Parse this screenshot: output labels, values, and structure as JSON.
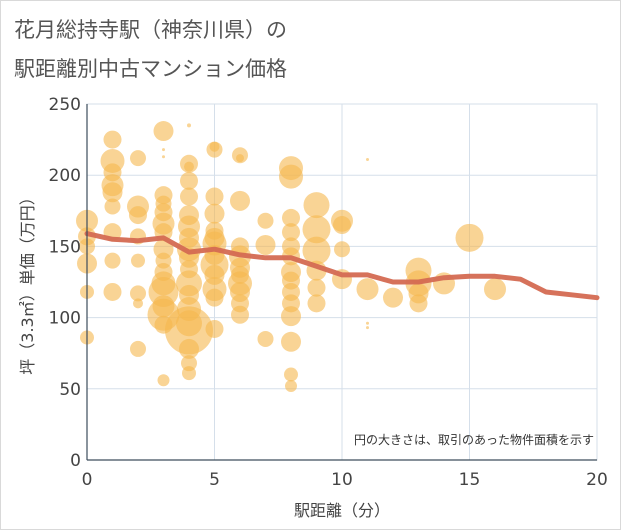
{
  "title_line1": "花月総持寺駅（神奈川県）の",
  "title_line2": "駅距離別中古マンション価格",
  "chart_data": {
    "type": "scatter",
    "title": "花月総持寺駅（神奈川県）の 駅距離別中古マンション価格",
    "xlabel": "駅距離（分）",
    "ylabel": "坪（3.3㎡）単価（万円）",
    "xlim": [
      0,
      20
    ],
    "ylim": [
      0,
      250
    ],
    "xticks": [
      0,
      5,
      10,
      15,
      20
    ],
    "yticks": [
      0,
      50,
      100,
      150,
      200,
      250
    ],
    "grid": true,
    "note": "円の大きさは、取引のあった物件面積を示す",
    "bubble_color": "#f5b84e",
    "line_color": "#d46a52",
    "bubbles": [
      {
        "x": 0,
        "y": 168,
        "r": 11
      },
      {
        "x": 0,
        "y": 157,
        "r": 9
      },
      {
        "x": 0,
        "y": 150,
        "r": 8
      },
      {
        "x": 0,
        "y": 138,
        "r": 10
      },
      {
        "x": 0,
        "y": 118,
        "r": 7
      },
      {
        "x": 0,
        "y": 86,
        "r": 7
      },
      {
        "x": 1,
        "y": 225,
        "r": 9
      },
      {
        "x": 1,
        "y": 210,
        "r": 12
      },
      {
        "x": 1,
        "y": 202,
        "r": 9
      },
      {
        "x": 1,
        "y": 193,
        "r": 11
      },
      {
        "x": 1,
        "y": 188,
        "r": 10
      },
      {
        "x": 1,
        "y": 178,
        "r": 8
      },
      {
        "x": 1,
        "y": 160,
        "r": 9
      },
      {
        "x": 1,
        "y": 140,
        "r": 8
      },
      {
        "x": 1,
        "y": 118,
        "r": 9
      },
      {
        "x": 2,
        "y": 212,
        "r": 8
      },
      {
        "x": 2,
        "y": 178,
        "r": 11
      },
      {
        "x": 2,
        "y": 172,
        "r": 9
      },
      {
        "x": 2,
        "y": 157,
        "r": 8
      },
      {
        "x": 2,
        "y": 140,
        "r": 7
      },
      {
        "x": 2,
        "y": 117,
        "r": 8
      },
      {
        "x": 2,
        "y": 110,
        "r": 5
      },
      {
        "x": 2,
        "y": 78,
        "r": 8
      },
      {
        "x": 3,
        "y": 231,
        "r": 10
      },
      {
        "x": 3,
        "y": 218,
        "r": 1.5
      },
      {
        "x": 3,
        "y": 213,
        "r": 1.5
      },
      {
        "x": 3,
        "y": 186,
        "r": 9
      },
      {
        "x": 3,
        "y": 180,
        "r": 8
      },
      {
        "x": 3,
        "y": 174,
        "r": 9
      },
      {
        "x": 3,
        "y": 166,
        "r": 11
      },
      {
        "x": 3,
        "y": 160,
        "r": 9
      },
      {
        "x": 3,
        "y": 148,
        "r": 10
      },
      {
        "x": 3,
        "y": 140,
        "r": 8
      },
      {
        "x": 3,
        "y": 132,
        "r": 9
      },
      {
        "x": 3,
        "y": 124,
        "r": 12
      },
      {
        "x": 3,
        "y": 118,
        "r": 15
      },
      {
        "x": 3,
        "y": 108,
        "r": 11
      },
      {
        "x": 3,
        "y": 102,
        "r": 16
      },
      {
        "x": 3,
        "y": 95,
        "r": 9
      },
      {
        "x": 3,
        "y": 56,
        "r": 6
      },
      {
        "x": 4,
        "y": 235,
        "r": 2
      },
      {
        "x": 4,
        "y": 208,
        "r": 9
      },
      {
        "x": 4,
        "y": 206,
        "r": 5
      },
      {
        "x": 4,
        "y": 196,
        "r": 9
      },
      {
        "x": 4,
        "y": 185,
        "r": 9
      },
      {
        "x": 4,
        "y": 172,
        "r": 10
      },
      {
        "x": 4,
        "y": 164,
        "r": 11
      },
      {
        "x": 4,
        "y": 156,
        "r": 10
      },
      {
        "x": 4,
        "y": 148,
        "r": 12
      },
      {
        "x": 4,
        "y": 142,
        "r": 10
      },
      {
        "x": 4,
        "y": 134,
        "r": 9
      },
      {
        "x": 4,
        "y": 124,
        "r": 13
      },
      {
        "x": 4,
        "y": 116,
        "r": 10
      },
      {
        "x": 4,
        "y": 106,
        "r": 12
      },
      {
        "x": 4,
        "y": 96,
        "r": 13
      },
      {
        "x": 4,
        "y": 91,
        "r": 24
      },
      {
        "x": 4,
        "y": 78,
        "r": 10
      },
      {
        "x": 4,
        "y": 68,
        "r": 8
      },
      {
        "x": 4,
        "y": 61,
        "r": 7
      },
      {
        "x": 5,
        "y": 220,
        "r": 5
      },
      {
        "x": 5,
        "y": 218,
        "r": 8
      },
      {
        "x": 5,
        "y": 185,
        "r": 9
      },
      {
        "x": 5,
        "y": 173,
        "r": 10
      },
      {
        "x": 5,
        "y": 161,
        "r": 9
      },
      {
        "x": 5,
        "y": 156,
        "r": 10
      },
      {
        "x": 5,
        "y": 152,
        "r": 12
      },
      {
        "x": 5,
        "y": 144,
        "r": 10
      },
      {
        "x": 5,
        "y": 137,
        "r": 14
      },
      {
        "x": 5,
        "y": 130,
        "r": 10
      },
      {
        "x": 5,
        "y": 120,
        "r": 12
      },
      {
        "x": 5,
        "y": 114,
        "r": 9
      },
      {
        "x": 5,
        "y": 92,
        "r": 9
      },
      {
        "x": 6,
        "y": 214,
        "r": 8
      },
      {
        "x": 6,
        "y": 212,
        "r": 4
      },
      {
        "x": 6,
        "y": 182,
        "r": 10
      },
      {
        "x": 6,
        "y": 150,
        "r": 9
      },
      {
        "x": 6,
        "y": 143,
        "r": 11
      },
      {
        "x": 6,
        "y": 135,
        "r": 10
      },
      {
        "x": 6,
        "y": 130,
        "r": 9
      },
      {
        "x": 6,
        "y": 124,
        "r": 12
      },
      {
        "x": 6,
        "y": 118,
        "r": 10
      },
      {
        "x": 6,
        "y": 110,
        "r": 9
      },
      {
        "x": 6,
        "y": 102,
        "r": 9
      },
      {
        "x": 7,
        "y": 168,
        "r": 8
      },
      {
        "x": 7,
        "y": 151,
        "r": 10
      },
      {
        "x": 7,
        "y": 85,
        "r": 8
      },
      {
        "x": 8,
        "y": 205,
        "r": 12
      },
      {
        "x": 8,
        "y": 199,
        "r": 12
      },
      {
        "x": 8,
        "y": 170,
        "r": 9
      },
      {
        "x": 8,
        "y": 160,
        "r": 9
      },
      {
        "x": 8,
        "y": 150,
        "r": 9
      },
      {
        "x": 8,
        "y": 143,
        "r": 9
      },
      {
        "x": 8,
        "y": 132,
        "r": 10
      },
      {
        "x": 8,
        "y": 126,
        "r": 9
      },
      {
        "x": 8,
        "y": 118,
        "r": 9
      },
      {
        "x": 8,
        "y": 110,
        "r": 9
      },
      {
        "x": 8,
        "y": 101,
        "r": 10
      },
      {
        "x": 8,
        "y": 83,
        "r": 10
      },
      {
        "x": 8,
        "y": 60,
        "r": 7
      },
      {
        "x": 8,
        "y": 52,
        "r": 6
      },
      {
        "x": 9,
        "y": 179,
        "r": 13
      },
      {
        "x": 9,
        "y": 162,
        "r": 14
      },
      {
        "x": 9,
        "y": 147,
        "r": 14
      },
      {
        "x": 9,
        "y": 133,
        "r": 10
      },
      {
        "x": 9,
        "y": 121,
        "r": 9
      },
      {
        "x": 9,
        "y": 110,
        "r": 9
      },
      {
        "x": 10,
        "y": 168,
        "r": 11
      },
      {
        "x": 10,
        "y": 165,
        "r": 9
      },
      {
        "x": 10,
        "y": 148,
        "r": 8
      },
      {
        "x": 10,
        "y": 127,
        "r": 10
      },
      {
        "x": 11,
        "y": 211,
        "r": 1.5
      },
      {
        "x": 11,
        "y": 120,
        "r": 11
      },
      {
        "x": 11,
        "y": 96,
        "r": 1.5
      },
      {
        "x": 11,
        "y": 93,
        "r": 1.5
      },
      {
        "x": 12,
        "y": 114,
        "r": 10
      },
      {
        "x": 13,
        "y": 133,
        "r": 13
      },
      {
        "x": 13,
        "y": 124,
        "r": 13
      },
      {
        "x": 13,
        "y": 117,
        "r": 10
      },
      {
        "x": 13,
        "y": 110,
        "r": 9
      },
      {
        "x": 14,
        "y": 124,
        "r": 11
      },
      {
        "x": 15,
        "y": 156,
        "r": 14
      },
      {
        "x": 16,
        "y": 120,
        "r": 11
      }
    ],
    "line": {
      "x": [
        0,
        1,
        2,
        3,
        4,
        5,
        6,
        7,
        8,
        9,
        10,
        11,
        12,
        13,
        14,
        15,
        16,
        17,
        18,
        19,
        20
      ],
      "y": [
        159,
        155,
        154,
        156,
        146,
        148,
        144,
        142,
        142,
        136,
        130,
        130,
        125,
        125,
        128,
        129,
        129,
        127,
        118,
        116,
        114
      ]
    }
  }
}
